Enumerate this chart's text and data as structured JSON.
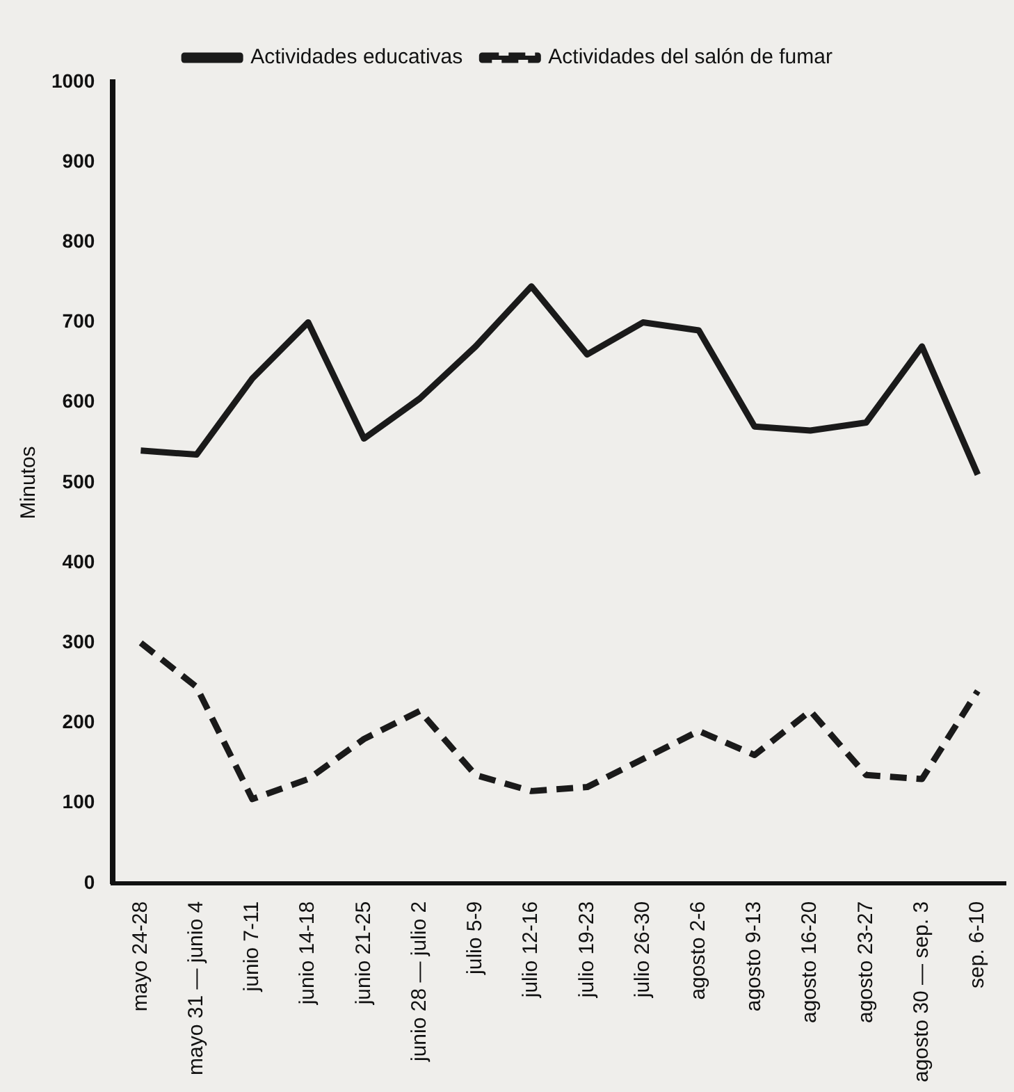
{
  "chart_data": {
    "type": "line",
    "ylabel": "Minutos",
    "categories": [
      "mayo 24-28",
      "mayo 31 — junio 4",
      "junio 7-11",
      "junio 14-18",
      "junio 21-25",
      "junio 28 — julio 2",
      "julio 5-9",
      "julio 12-16",
      "julio 19-23",
      "julio 26-30",
      "agosto 2-6",
      "agosto 9-13",
      "agosto 16-20",
      "agosto 23-27",
      "agosto 30 — sep. 3",
      "sep. 6-10"
    ],
    "series": [
      {
        "name": "Actividades educativas",
        "color": "#1a1a1a",
        "line_style": "solid",
        "values": [
          540,
          535,
          630,
          700,
          555,
          605,
          670,
          745,
          660,
          700,
          690,
          570,
          565,
          575,
          670,
          510
        ]
      },
      {
        "name": "Actividades del salón de fumar",
        "color": "#1a1a1a",
        "line_style": "dashed",
        "values": [
          300,
          245,
          105,
          130,
          180,
          215,
          135,
          115,
          120,
          155,
          190,
          160,
          215,
          135,
          130,
          240
        ]
      }
    ],
    "ylim": [
      0,
      1000
    ],
    "yticks": [
      0,
      100,
      200,
      300,
      400,
      500,
      600,
      700,
      800,
      900,
      1000
    ],
    "grid": false,
    "legend": "top",
    "marker": "none"
  }
}
